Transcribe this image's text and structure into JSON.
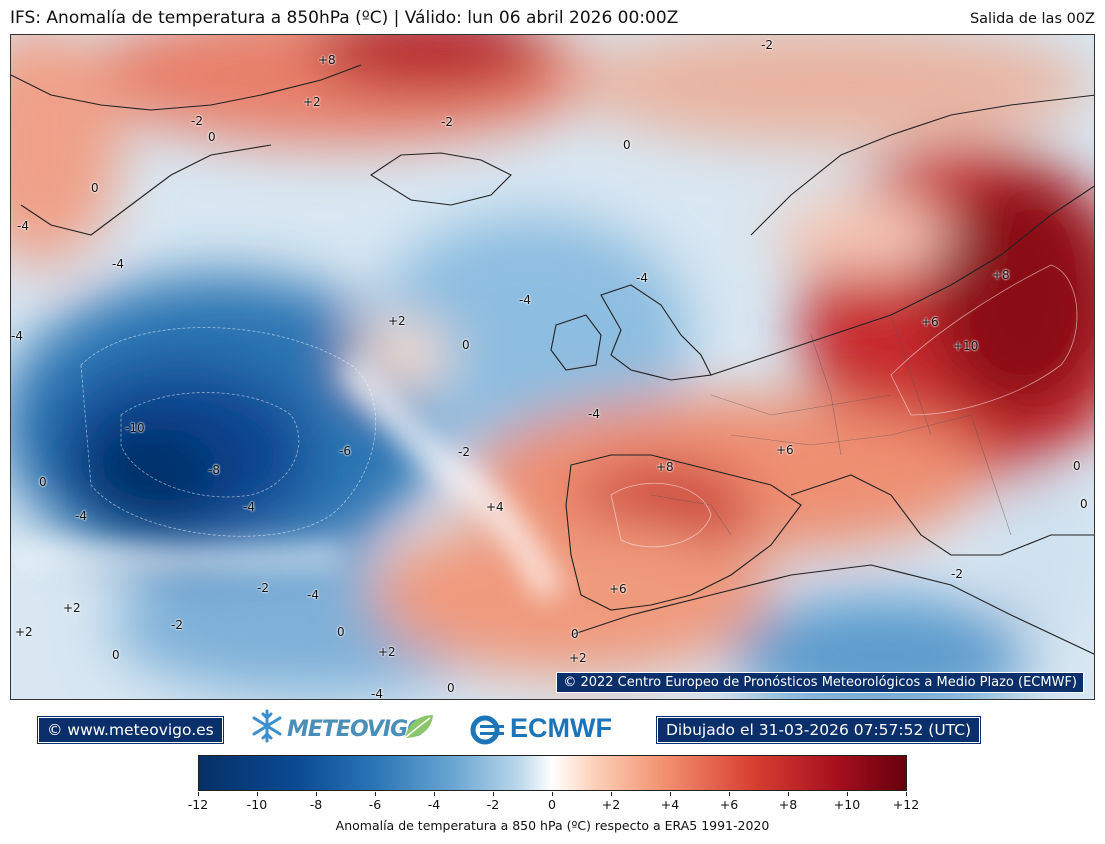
{
  "header": {
    "title": "IFS: Anomalía de temperatura a 850hPa  (ºC) | Válido: lun 06 abril 2026 00:00Z",
    "run": "Salida de las 00Z"
  },
  "map": {
    "copyright": "© 2022 Centro Europeo de Pronósticos Meteorológicos a Medio Plazo (ECMWF)",
    "contour_labels": [
      {
        "id": "c1",
        "text": "+8"
      },
      {
        "id": "c2",
        "text": "+2"
      },
      {
        "id": "c3",
        "text": "-2"
      },
      {
        "id": "c4",
        "text": "-2"
      },
      {
        "id": "c5",
        "text": "-2"
      },
      {
        "id": "c6",
        "text": "0"
      },
      {
        "id": "c7",
        "text": "0"
      },
      {
        "id": "c8",
        "text": "0"
      },
      {
        "id": "c9",
        "text": "-4"
      },
      {
        "id": "c10",
        "text": "-4"
      },
      {
        "id": "c11",
        "text": "-4"
      },
      {
        "id": "c12",
        "text": "+2"
      },
      {
        "id": "c13",
        "text": "0"
      },
      {
        "id": "c14",
        "text": "-4"
      },
      {
        "id": "c15",
        "text": "-4"
      },
      {
        "id": "c16",
        "text": "-10"
      },
      {
        "id": "c17",
        "text": "-8"
      },
      {
        "id": "c18",
        "text": "-6"
      },
      {
        "id": "c19",
        "text": "-2"
      },
      {
        "id": "c20",
        "text": "-4"
      },
      {
        "id": "c21",
        "text": "0"
      },
      {
        "id": "c22",
        "text": "-4"
      },
      {
        "id": "c23",
        "text": "-4"
      },
      {
        "id": "c24",
        "text": "+4"
      },
      {
        "id": "c25",
        "text": "+8"
      },
      {
        "id": "c26",
        "text": "+6"
      },
      {
        "id": "c27",
        "text": "+8"
      },
      {
        "id": "c28",
        "text": "+6"
      },
      {
        "id": "c29",
        "text": "+10"
      },
      {
        "id": "c30",
        "text": "0"
      },
      {
        "id": "c31",
        "text": "0"
      },
      {
        "id": "c32",
        "text": "-2"
      },
      {
        "id": "c33",
        "text": "+6"
      },
      {
        "id": "c34",
        "text": "-2"
      },
      {
        "id": "c35",
        "text": "-4"
      },
      {
        "id": "c36",
        "text": "+2"
      },
      {
        "id": "c37",
        "text": "-2"
      },
      {
        "id": "c38",
        "text": "+2"
      },
      {
        "id": "c39",
        "text": "0"
      },
      {
        "id": "c40",
        "text": "0"
      },
      {
        "id": "c41",
        "text": "+2"
      },
      {
        "id": "c42",
        "text": "0"
      },
      {
        "id": "c43",
        "text": "+2"
      },
      {
        "id": "c44",
        "text": "0"
      },
      {
        "id": "c45",
        "text": "-4"
      }
    ]
  },
  "footer": {
    "website": "© www.meteovigo.es",
    "meteovigo_logo": "METEOVIGO",
    "ecmwf_logo": "ECMWF",
    "drawn": "Dibujado el 31-03-2026 07:57:52 (UTC)"
  },
  "colorbar": {
    "ticks": [
      "-12",
      "-10",
      "-8",
      "-6",
      "-4",
      "-2",
      "0",
      "+2",
      "+4",
      "+6",
      "+8",
      "+10",
      "+12"
    ],
    "range": [
      -12,
      12
    ],
    "colors": [
      "#062f66",
      "#0a4b94",
      "#2b76b7",
      "#6aa6d2",
      "#b8d6ea",
      "#ffffff",
      "#fcd0b8",
      "#f28f6e",
      "#d94133",
      "#a8101e",
      "#67000d"
    ],
    "label": "Anomalía de temperatura a 850 hPa (ºC) respecto a ERA5 1991-2020"
  }
}
